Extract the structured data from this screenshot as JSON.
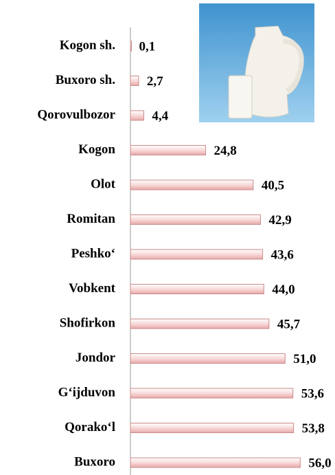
{
  "chart_data": {
    "type": "bar",
    "orientation": "horizontal",
    "categories": [
      "Kogon sh.",
      "Buxoro sh.",
      "Qorovulbozor",
      "Kogon",
      "Olot",
      "Romitan",
      "Peshko‘",
      "Vobkent",
      "Shofirkon",
      "Jondor",
      "G‘ijduvon",
      "Qorako‘l",
      "Buxoro"
    ],
    "values": [
      0.1,
      2.7,
      4.4,
      24.8,
      40.5,
      42.9,
      43.6,
      44.0,
      45.7,
      51.0,
      53.6,
      53.8,
      56.0
    ],
    "value_labels": [
      "0,1",
      "2,7",
      "4,4",
      "24,8",
      "40,5",
      "42,9",
      "43,6",
      "44,0",
      "45,7",
      "51,0",
      "53,6",
      "53,8",
      "56,0"
    ],
    "color": "#f4c6c6",
    "xlim": [
      0,
      60
    ]
  }
}
